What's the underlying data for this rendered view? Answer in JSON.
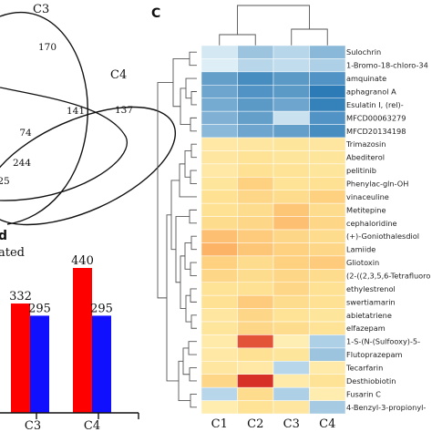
{
  "venn": {
    "set_labels": [
      "C3",
      "C4"
    ],
    "region_values": [
      "170",
      "141",
      "137",
      "74",
      "244",
      "25"
    ]
  },
  "bar_panel": {
    "partial_header": "ated",
    "partial_letter": "d"
  },
  "heatmap_panel": {
    "letter": "C"
  },
  "chart_data": [
    {
      "type": "bar",
      "categories": [
        "C3",
        "C4"
      ],
      "series": [
        {
          "color": "#ff0000",
          "values": [
            332,
            440
          ]
        },
        {
          "color": "#1010ff",
          "values": [
            295,
            295
          ]
        }
      ],
      "value_labels": [
        [
          "332",
          "440"
        ],
        [
          "295",
          "295"
        ]
      ],
      "ylim": [
        0,
        520
      ]
    },
    {
      "type": "heatmap",
      "columns": [
        "C1",
        "C2",
        "C3",
        "C4"
      ],
      "rows": [
        "Sulochrin",
        "1-Bromo-18-chloro-34",
        "amquinate",
        "aphagranol A",
        "Esulatin I, (rel)-",
        "MFCD00063279",
        "MFCD20134198",
        "Trimazosin",
        "Abediterol",
        "pelitinib",
        "Phenylac-gln-OH",
        "vinaceuline",
        "Metitepine",
        "cephaloridine",
        "(+)-Goniothalesdiol",
        "Lamiide",
        "Gliotoxin",
        "(2-((2,3,5,6-Tetrafluoro",
        "ethylestrenol",
        "swertiamarin",
        "abietatriene",
        "elfazepam",
        "1-S-(N-(Sulfooxy)-5-",
        "Flutoprazepam",
        "Tecarfarin",
        "Desthiobiotin",
        "Fusarin C",
        "4-Benzyl-3-propionyl-"
      ],
      "values": [
        [
          -0.2,
          -0.8,
          -0.5,
          -1.0
        ],
        [
          -0.1,
          -0.5,
          -0.4,
          -0.6
        ],
        [
          -1.4,
          -1.7,
          -1.5,
          -1.6
        ],
        [
          -1.3,
          -1.6,
          -1.5,
          -2.0
        ],
        [
          -1.2,
          -1.5,
          -1.3,
          -1.9
        ],
        [
          -1.1,
          -1.4,
          -0.3,
          -1.6
        ],
        [
          -1.0,
          -1.3,
          -1.4,
          -1.7
        ],
        [
          0.4,
          0.5,
          0.6,
          0.5
        ],
        [
          0.5,
          0.7,
          0.6,
          0.6
        ],
        [
          0.4,
          0.8,
          0.7,
          0.6
        ],
        [
          0.6,
          1.1,
          0.7,
          0.8
        ],
        [
          0.8,
          1.0,
          0.9,
          1.1
        ],
        [
          0.8,
          0.9,
          1.3,
          0.9
        ],
        [
          0.9,
          1.0,
          1.4,
          1.0
        ],
        [
          1.4,
          1.2,
          1.0,
          0.9
        ],
        [
          1.6,
          1.3,
          1.1,
          1.0
        ],
        [
          1.1,
          0.9,
          1.1,
          1.2
        ],
        [
          1.0,
          0.9,
          1.0,
          0.9
        ],
        [
          0.7,
          0.8,
          1.0,
          0.8
        ],
        [
          0.8,
          1.2,
          0.9,
          0.8
        ],
        [
          0.5,
          1.0,
          0.7,
          0.6
        ],
        [
          0.6,
          1.0,
          0.9,
          0.7
        ],
        [
          0.3,
          2.2,
          0.1,
          -0.6
        ],
        [
          0.4,
          0.8,
          0.6,
          -0.8
        ],
        [
          0.5,
          0.4,
          -0.5,
          0.3
        ],
        [
          1.0,
          2.4,
          0.3,
          0.7
        ],
        [
          -0.5,
          0.9,
          -0.6,
          0.2
        ],
        [
          0.2,
          0.7,
          0.5,
          -0.7
        ]
      ]
    }
  ]
}
